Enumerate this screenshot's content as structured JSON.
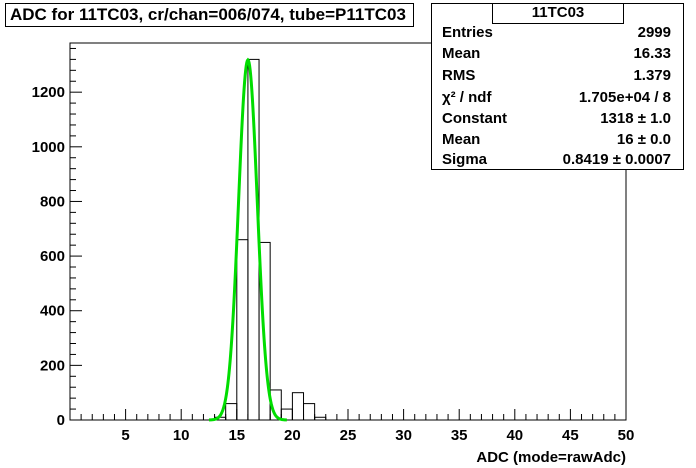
{
  "title": "ADC for 11TC03,  cr/chan=006/074,  tube=P11TC03",
  "stats": {
    "name": "11TC03",
    "rows": [
      {
        "key": "Entries",
        "value": "2999"
      },
      {
        "key": "Mean",
        "value": "16.33"
      },
      {
        "key": "RMS",
        "value": "1.379"
      },
      {
        "key": "χ² / ndf",
        "value": "1.705e+04 / 8"
      },
      {
        "key": "Constant",
        "value": "1318 ± 1.0"
      },
      {
        "key": "Mean",
        "value": "16 ± 0.0"
      },
      {
        "key": "Sigma",
        "value": "0.8419 ± 0.0007"
      }
    ]
  },
  "chart_data": {
    "type": "histogram",
    "title": "ADC for 11TC03,  cr/chan=006/074,  tube=P11TC03",
    "xlabel": "ADC (mode=rawAdc)",
    "ylabel": "",
    "xlim": [
      0,
      50
    ],
    "ylim": [
      0,
      1380
    ],
    "xticks": [
      5,
      10,
      15,
      20,
      25,
      30,
      35,
      40,
      45,
      50
    ],
    "yticks": [
      0,
      200,
      400,
      600,
      800,
      1000,
      1200
    ],
    "bins": [
      {
        "x0": 11,
        "x1": 12,
        "y": 0
      },
      {
        "x0": 12,
        "x1": 13,
        "y": 0
      },
      {
        "x0": 13,
        "x1": 14,
        "y": 10
      },
      {
        "x0": 14,
        "x1": 15,
        "y": 60
      },
      {
        "x0": 15,
        "x1": 16,
        "y": 660
      },
      {
        "x0": 16,
        "x1": 17,
        "y": 1320
      },
      {
        "x0": 17,
        "x1": 18,
        "y": 650
      },
      {
        "x0": 18,
        "x1": 19,
        "y": 110
      },
      {
        "x0": 19,
        "x1": 20,
        "y": 40
      },
      {
        "x0": 20,
        "x1": 21,
        "y": 100
      },
      {
        "x0": 21,
        "x1": 22,
        "y": 60
      },
      {
        "x0": 22,
        "x1": 23,
        "y": 10
      },
      {
        "x0": 23,
        "x1": 24,
        "y": 0
      }
    ],
    "fit": {
      "type": "gaussian",
      "constant": 1318,
      "mean": 16,
      "sigma": 0.8419,
      "color": "#00dd00",
      "range": [
        12.5,
        19.5
      ]
    },
    "grid": false,
    "legend": "top-right"
  }
}
